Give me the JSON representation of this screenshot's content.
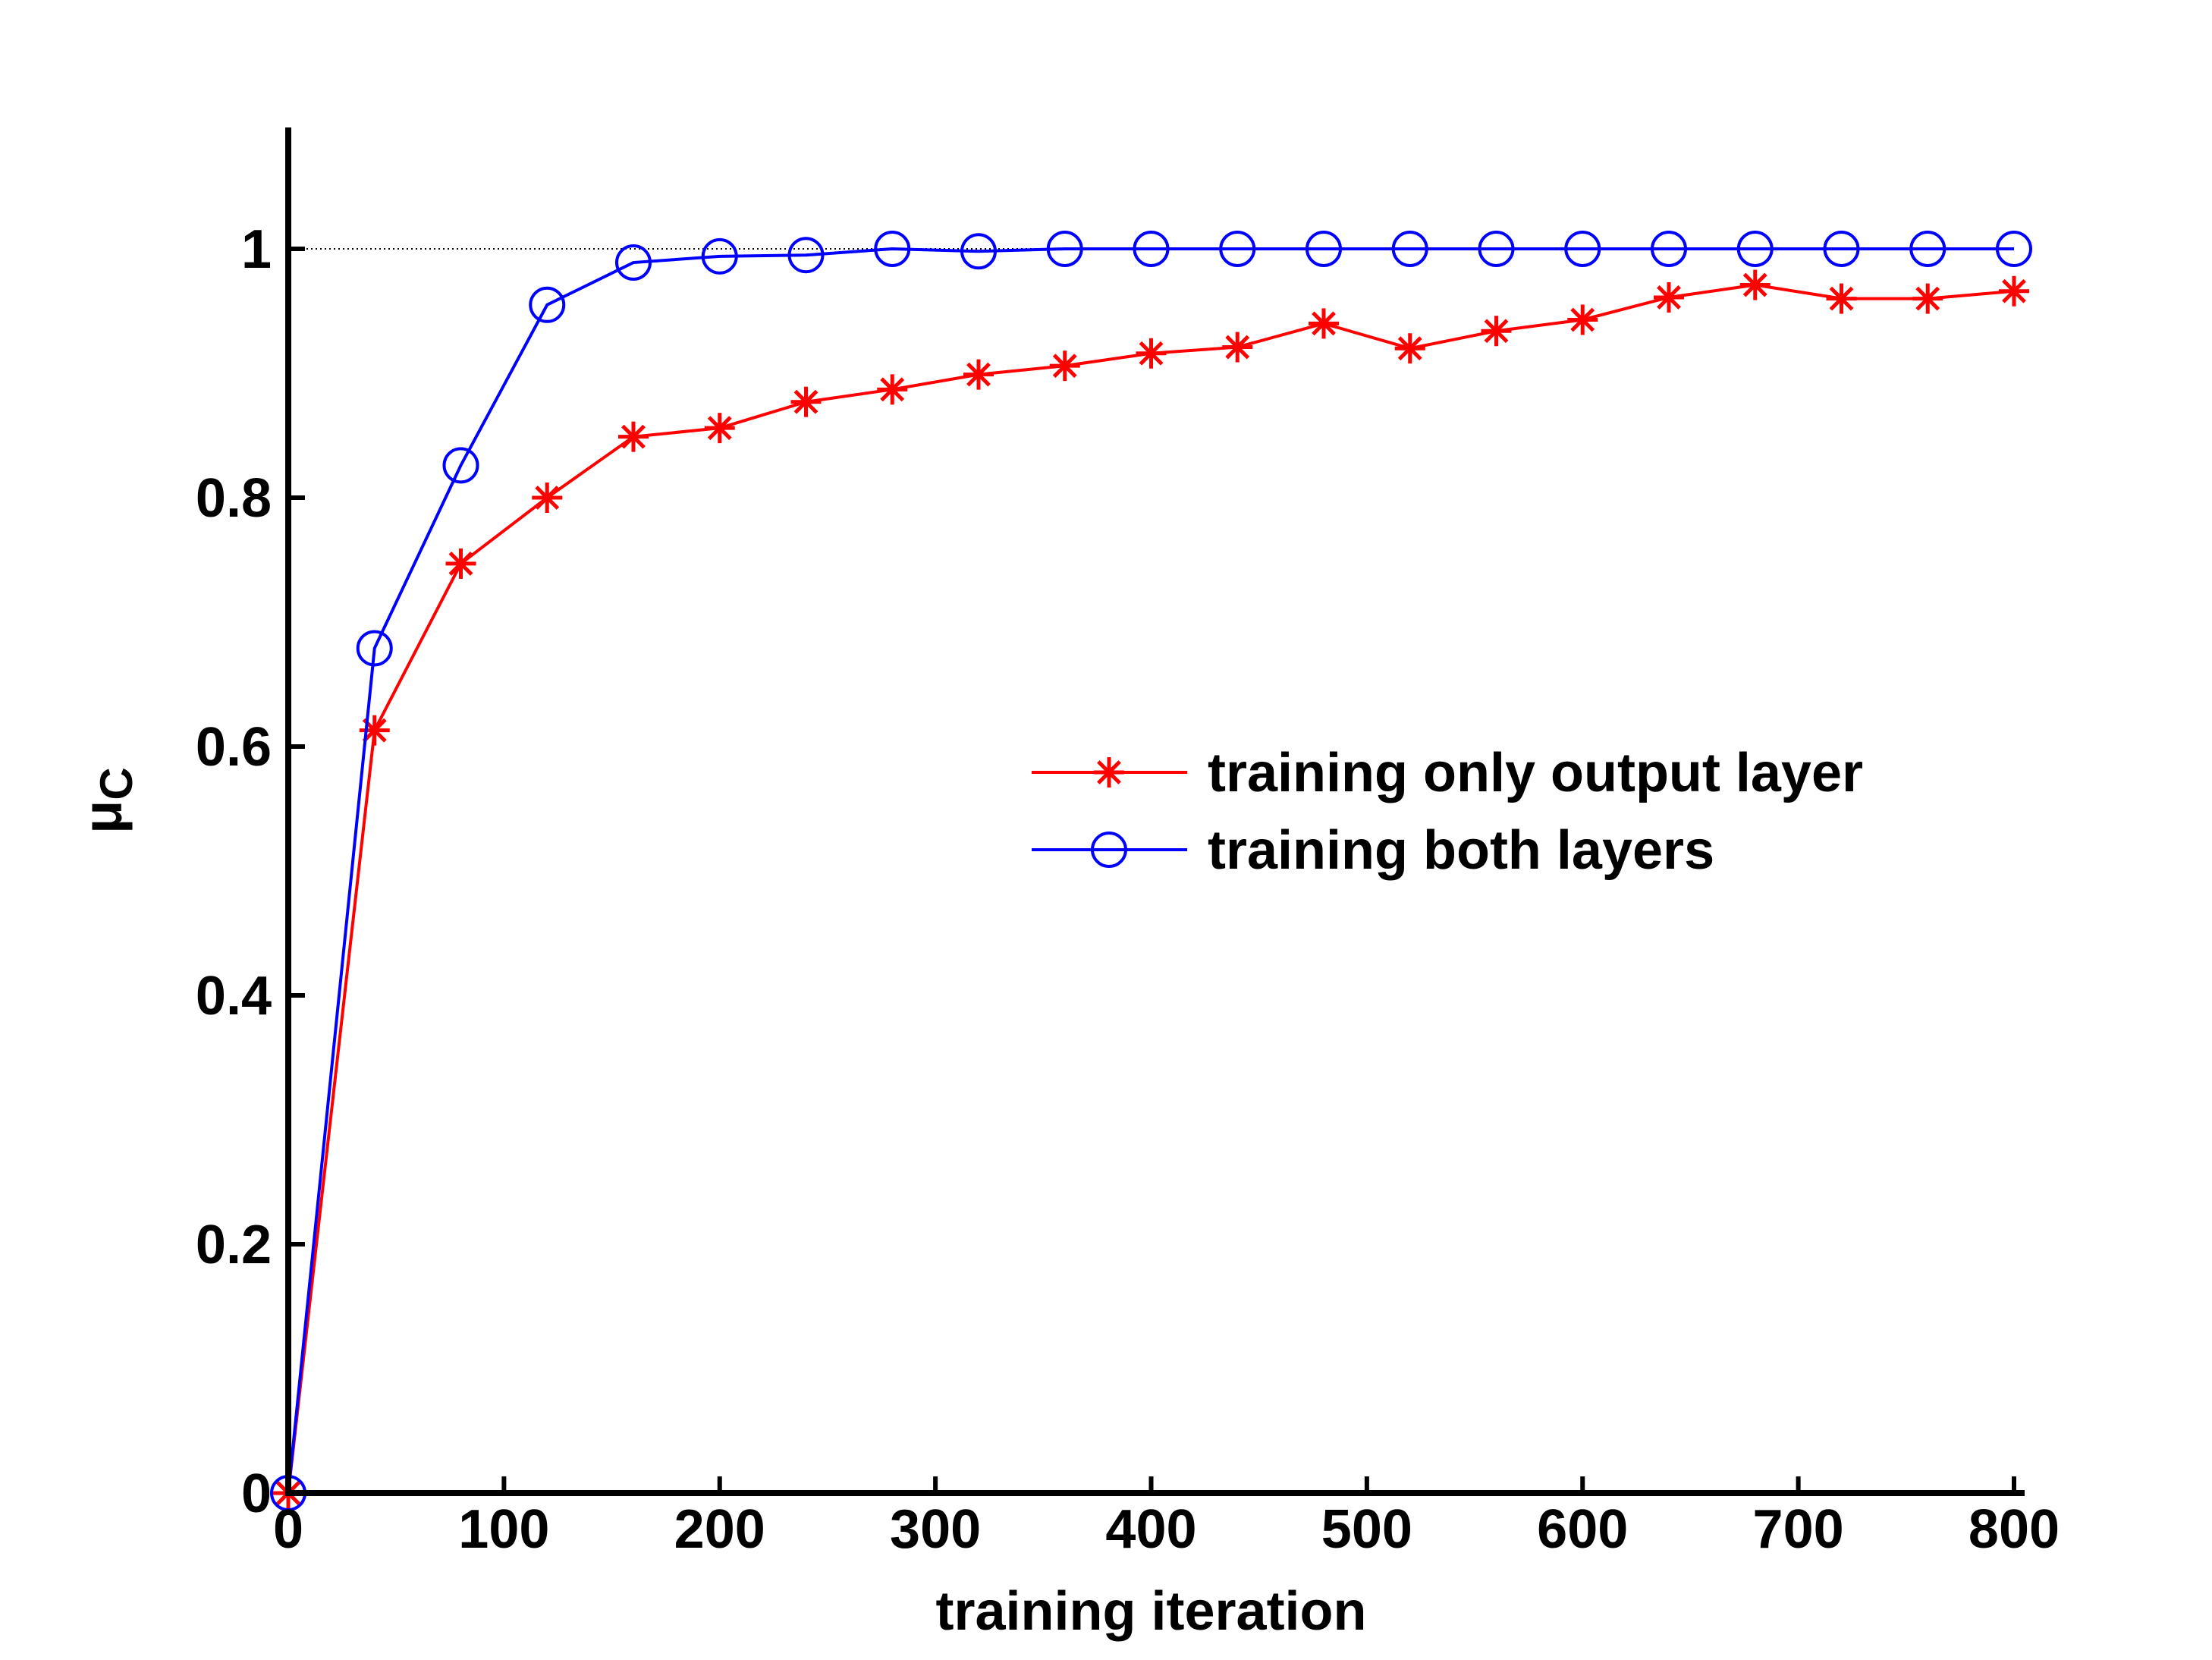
{
  "chart_data": {
    "type": "line",
    "title": "",
    "xlabel": "training iteration",
    "ylabel": "μ",
    "ylabel_subscript": "C",
    "xlim": [
      0,
      800
    ],
    "ylim": [
      0,
      1.1
    ],
    "xticks": [
      0,
      100,
      200,
      300,
      400,
      500,
      600,
      700,
      800
    ],
    "yticks": [
      0,
      0.2,
      0.4,
      0.6,
      0.8,
      1
    ],
    "xtick_labels": [
      "0",
      "100",
      "200",
      "300",
      "400",
      "500",
      "600",
      "700",
      "800"
    ],
    "ytick_labels": [
      "0",
      "0.2",
      "0.4",
      "0.6",
      "0.8",
      "1"
    ],
    "reference_line": {
      "y": 1,
      "style": "dotted",
      "color": "#000000"
    },
    "legend_position": "center-right",
    "x": [
      0,
      40,
      80,
      120,
      160,
      200,
      240,
      280,
      320,
      360,
      400,
      440,
      480,
      520,
      560,
      600,
      640,
      680,
      720,
      760,
      800
    ],
    "series": [
      {
        "name": "training only output layer",
        "color": "#ff0000",
        "marker": "asterisk",
        "values": [
          0,
          0.613,
          0.747,
          0.8,
          0.849,
          0.856,
          0.877,
          0.887,
          0.899,
          0.906,
          0.916,
          0.921,
          0.94,
          0.92,
          0.934,
          0.943,
          0.961,
          0.971,
          0.96,
          0.96,
          0.966
        ]
      },
      {
        "name": "training both layers",
        "color": "#0000ff",
        "marker": "circle",
        "values": [
          0,
          0.679,
          0.826,
          0.955,
          0.989,
          0.994,
          0.995,
          1.0,
          0.998,
          1.0,
          1.0,
          1.0,
          1.0,
          1.0,
          1.0,
          1.0,
          1.0,
          1.0,
          1.0,
          1.0,
          1.0
        ]
      }
    ]
  }
}
